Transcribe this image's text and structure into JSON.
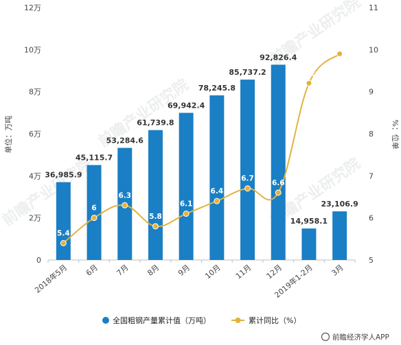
{
  "chart_data": {
    "type": "bar+line",
    "categories": [
      "2018年5月",
      "6月",
      "7月",
      "8月",
      "9月",
      "10月",
      "11月",
      "12月",
      "2019年1-2月",
      "3月"
    ],
    "series": [
      {
        "name": "全国粗钢产量累计值（万吨）",
        "type": "bar",
        "axis": "left",
        "color": "#1a7fc4",
        "values": [
          36985.9,
          45115.7,
          53284.6,
          61739.8,
          69942.4,
          78245.8,
          85737.2,
          92826.4,
          14958.1,
          23106.9
        ],
        "labels": [
          "36,985.9",
          "45,115.7",
          "53,284.6",
          "61,739.8",
          "69,942.4",
          "78,245.8",
          "85,737.2",
          "92,826.4",
          "14,958.1",
          "23,106.9"
        ]
      },
      {
        "name": "累计同比（%）",
        "type": "line",
        "axis": "right",
        "color": "#e3b23c",
        "values": [
          5.4,
          6,
          6.3,
          5.8,
          6.1,
          6.4,
          6.7,
          6.6,
          9.2,
          9.9
        ],
        "labels": [
          "5.4",
          "6",
          "6.3",
          "5.8",
          "6.1",
          "6.4",
          "6.7",
          "6.6",
          "9.2",
          "9.9"
        ]
      }
    ],
    "ylabel": "单位：万吨",
    "y2label": "%：位单",
    "ylim": [
      0,
      120000
    ],
    "y2lim": [
      5,
      11
    ],
    "yticks": [
      0,
      20000,
      40000,
      60000,
      80000,
      100000,
      120000
    ],
    "ytick_labels": [
      "0",
      "2万",
      "4万",
      "6万",
      "8万",
      "10万",
      "12万"
    ],
    "y2ticks": [
      5,
      6,
      7,
      8,
      9,
      10,
      11
    ],
    "y2tick_labels": [
      "5",
      "6",
      "7",
      "8",
      "9",
      "10",
      "11"
    ],
    "grid": false,
    "legend_position": "bottom"
  },
  "watermark": {
    "text": "前瞻产业研究院"
  },
  "brand": {
    "text": "前瞻经济学人APP"
  }
}
